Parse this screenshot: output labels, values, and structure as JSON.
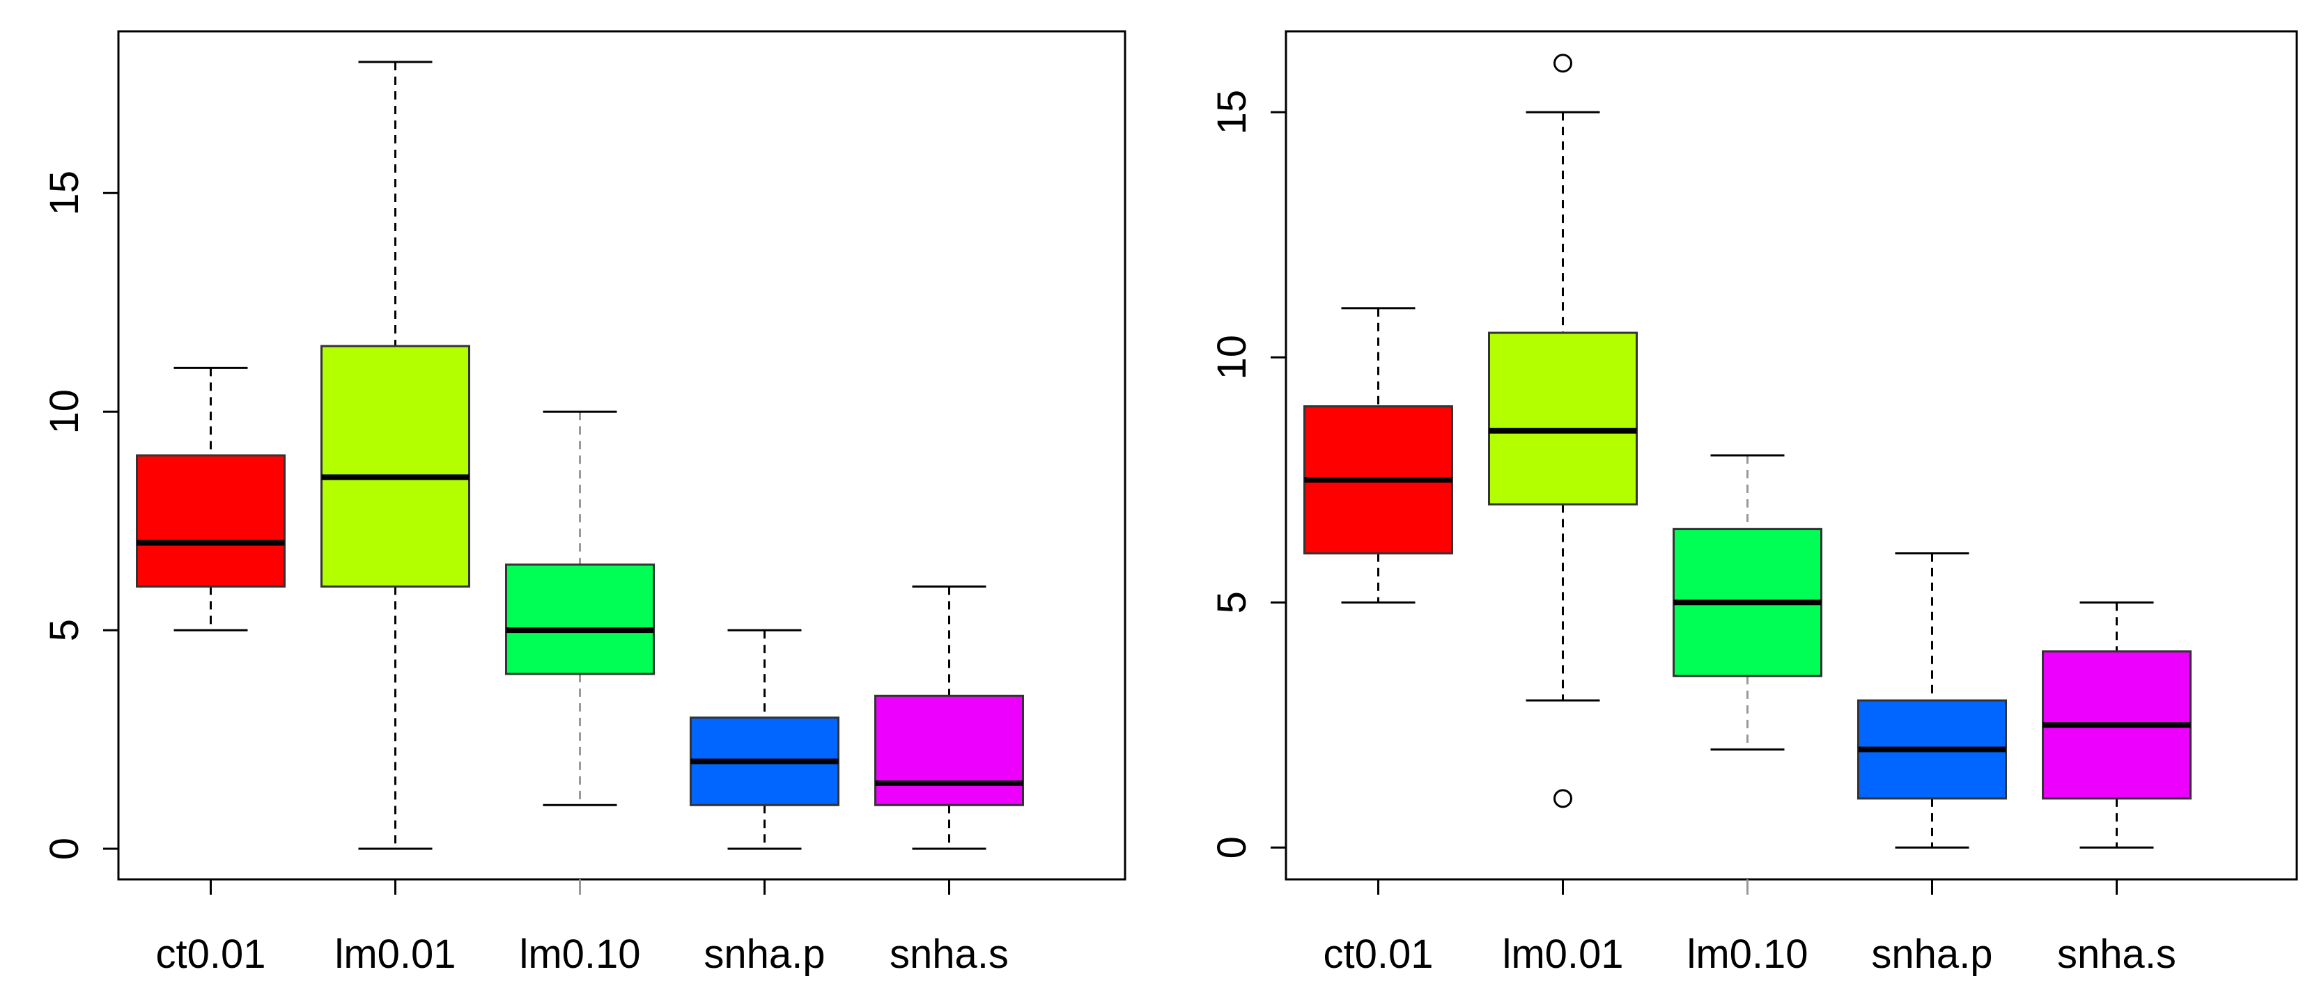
{
  "chart_data": [
    {
      "type": "boxplot",
      "title": "",
      "xlabel": "",
      "ylabel": "",
      "categories": [
        "ct0.01",
        "lm0.01",
        "lm0.10",
        "snha.p",
        "snha.s"
      ],
      "colors": [
        "#ff0000",
        "#b3ff00",
        "#00ff55",
        "#0066ff",
        "#ee00ff"
      ],
      "ylim": [
        -0.7,
        18.7
      ],
      "yticks": [
        0,
        5,
        10,
        15
      ],
      "boxes": [
        {
          "name": "ct0.01",
          "min": 5,
          "q1": 6,
          "median": 7,
          "q3": 9,
          "max": 11,
          "outliers": []
        },
        {
          "name": "lm0.01",
          "min": 0,
          "q1": 6,
          "median": 8.5,
          "q3": 11.5,
          "max": 18,
          "outliers": []
        },
        {
          "name": "lm0.10",
          "min": 1,
          "q1": 4,
          "median": 5,
          "q3": 6.5,
          "max": 10,
          "outliers": []
        },
        {
          "name": "snha.p",
          "min": 0,
          "q1": 1,
          "median": 2,
          "q3": 3,
          "max": 5,
          "outliers": []
        },
        {
          "name": "snha.s",
          "min": 0,
          "q1": 1,
          "median": 1.5,
          "q3": 3.5,
          "max": 6,
          "outliers": []
        }
      ]
    },
    {
      "type": "boxplot",
      "title": "",
      "xlabel": "",
      "ylabel": "",
      "categories": [
        "ct0.01",
        "lm0.01",
        "lm0.10",
        "snha.p",
        "snha.s"
      ],
      "colors": [
        "#ff0000",
        "#b3ff00",
        "#00ff55",
        "#0066ff",
        "#ee00ff"
      ],
      "ylim": [
        -0.65,
        16.65
      ],
      "yticks": [
        0,
        5,
        10,
        15
      ],
      "boxes": [
        {
          "name": "ct0.01",
          "min": 5,
          "q1": 6,
          "median": 7.5,
          "q3": 9,
          "max": 11,
          "outliers": []
        },
        {
          "name": "lm0.01",
          "min": 3,
          "q1": 7,
          "median": 8.5,
          "q3": 10.5,
          "max": 15,
          "outliers": [
            16,
            1
          ]
        },
        {
          "name": "lm0.10",
          "min": 2,
          "q1": 3.5,
          "median": 5,
          "q3": 6.5,
          "max": 8,
          "outliers": []
        },
        {
          "name": "snha.p",
          "min": 0,
          "q1": 1,
          "median": 2,
          "q3": 3,
          "max": 6,
          "outliers": []
        },
        {
          "name": "snha.s",
          "min": 0,
          "q1": 1,
          "median": 2.5,
          "q3": 4,
          "max": 5,
          "outliers": []
        }
      ]
    }
  ]
}
